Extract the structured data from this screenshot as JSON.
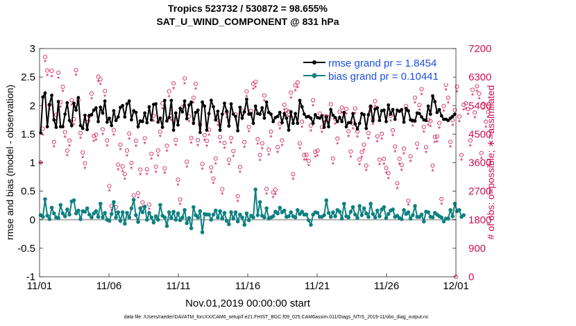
{
  "chart_data": {
    "type": "line",
    "title": "Tropics 523732 / 530872 = 98.655%",
    "subtitle": "SAT_U_WIND_COMPONENT @ 831 hPa",
    "xlabel": "Nov.01,2019 00:00:00 start",
    "ylabel_left": "rmse and bias (model - observation)",
    "ylabel_right": "# of obs: o=possible; ∗=assimilated",
    "footnote": "data file: /Users/raeder/DAI/ATM_forcXX/CAM6_setup/f.e21.FHIST_BGC.f09_025.CAM6assim.011/Diags_NTrS_2019-11/obs_diag_output.nc",
    "x_ticks": [
      1,
      6,
      11,
      16,
      21,
      26,
      31
    ],
    "x_tick_labels": [
      "11/01",
      "11/06",
      "11/11",
      "11/16",
      "11/21",
      "11/26",
      "12/01"
    ],
    "xlim": [
      1,
      31
    ],
    "ylim_left": [
      -1,
      3
    ],
    "y_ticks_left": [
      -1,
      -0.5,
      0,
      0.5,
      1,
      1.5,
      2,
      2.5,
      3
    ],
    "y_tick_labels_left": [
      "-1",
      "-0.5",
      "0",
      "0.5",
      "1",
      "1.5",
      "2",
      "2.5",
      "3"
    ],
    "ylim_right": [
      0,
      7200
    ],
    "y_ticks_right": [
      0,
      900,
      1800,
      2700,
      3600,
      4500,
      5400,
      6300,
      7200
    ],
    "y_tick_labels_right": [
      "0",
      "900",
      "1800",
      "2700",
      "3600",
      "4500",
      "5400",
      "6300",
      "7200"
    ],
    "legend": {
      "location": "top-right",
      "entries": [
        "rmse grand pr = 1.8454",
        "bias grand pr = 0.10441"
      ]
    },
    "colors": {
      "rmse": "#000000",
      "bias": "#0e8080",
      "obs": "#cc1050",
      "zero": "#b0b0b0",
      "legend_text": "#1a4fe0"
    },
    "series": [
      {
        "name": "rmse",
        "axis": "left",
        "values": [
          1.52,
          2.15,
          2.22,
          1.63,
          2.02,
          2.18,
          1.75,
          1.62,
          2.07,
          1.63,
          1.63,
          1.85,
          2.05,
          1.74,
          1.65,
          2.04,
          1.92,
          2.14,
          1.65,
          1.6,
          1.83,
          1.58,
          1.83,
          1.84,
          1.92,
          1.96,
          1.72,
          1.97,
          1.87,
          2.08,
          1.71,
          1.78,
          1.65,
          1.91,
          1.74,
          1.8,
          1.97,
          2.0,
          1.8,
          2.03,
          2.08,
          1.75,
          1.91,
          1.88,
          1.63,
          1.73,
          1.72,
          1.87,
          1.7,
          1.98,
          1.75,
          2.02,
          2.03,
          1.71,
          1.78,
          1.62,
          2.09,
          1.73,
          1.79,
          2.09,
          1.57,
          1.87,
          1.66,
          1.95,
          1.89,
          2.08,
          1.77,
          2.01,
          2.06,
          1.69,
          1.88,
          1.92,
          1.53,
          2.06,
          1.99,
          1.57,
          1.86,
          2.09,
          1.98,
          1.75,
          1.9,
          1.57,
          1.85,
          2.04,
          1.9,
          1.64,
          2.03,
          1.85,
          1.81,
          1.56,
          1.97,
          1.78,
          1.89,
          2.11,
          1.85,
          1.86,
          1.69,
          1.99,
          1.86,
          1.85,
          1.96,
          1.78,
          2.06,
          1.88,
          1.85,
          1.72,
          1.79,
          1.81,
          1.88,
          1.7,
          1.86,
          1.78,
          1.57,
          1.89,
          1.69,
          1.86,
          1.69,
          2.09,
          1.98,
          1.85,
          1.8,
          1.81,
          1.78,
          1.69,
          1.84,
          1.79,
          1.78,
          1.82,
          1.62,
          1.8,
          1.63,
          1.93,
          1.83,
          1.79,
          1.72,
          1.79,
          1.72,
          1.88,
          1.63,
          1.7,
          1.7,
          1.86,
          1.68,
          1.59,
          1.69,
          1.86,
          1.84,
          1.6,
          1.84,
          1.99,
          1.73,
          1.94,
          1.96,
          1.74,
          1.91,
          1.92,
          1.72,
          2.01,
          1.85,
          1.93,
          1.76,
          1.92,
          1.9,
          1.93,
          1.71,
          1.95,
          1.91,
          1.75,
          1.74,
          1.73,
          1.87,
          1.86,
          1.8,
          1.75,
          1.74,
          1.99,
          1.85,
          2.17,
          2.07,
          1.88,
          1.93,
          1.82,
          1.76,
          1.76,
          1.74,
          1.78,
          1.81,
          1.85
        ]
      },
      {
        "name": "bias",
        "axis": "left",
        "values": [
          0.08,
          0.05,
          0.36,
          0.07,
          0.01,
          0.21,
          0.11,
          0.04,
          0.03,
          0.26,
          0.11,
          0.06,
          0.18,
          0.09,
          0.32,
          0.34,
          0.11,
          0.16,
          0.01,
          0.15,
          0.14,
          0.2,
          0.09,
          0.04,
          0.11,
          0.15,
          0.05,
          0.28,
          0.04,
          0.12,
          0.0,
          -0.02,
          0.1,
          0.31,
          0.04,
          0.13,
          -0.02,
          0.13,
          -0.07,
          0.12,
          0.04,
          0.2,
          0.35,
          0.08,
          -0.04,
          0.2,
          0.13,
          0.23,
          0.0,
          0.12,
          0.04,
          -0.05,
          0.06,
          0.0,
          0.26,
          0.07,
          0.04,
          -0.11,
          0.13,
          0.03,
          0.14,
          0.0,
          0.11,
          -0.01,
          0.04,
          0.17,
          -0.06,
          0.03,
          -0.15,
          0.22,
          0.08,
          0.04,
          0.15,
          -0.22,
          0.1,
          0.09,
          0.09,
          0.0,
          0.09,
          0.16,
          0.04,
          0.15,
          0.02,
          0.12,
          -0.02,
          -0.08,
          0.13,
          0.02,
          0.13,
          -0.03,
          0.09,
          0.04,
          -0.09,
          0.11,
          -0.01,
          0.07,
          0.04,
          0.53,
          0.08,
          0.31,
          0.07,
          0.04,
          0.2,
          0.02,
          0.04,
          0.06,
          0.14,
          0.11,
          0.21,
          0.13,
          0.16,
          0.05,
          0.06,
          0.13,
          0.06,
          0.04,
          0.17,
          0.1,
          0.14,
          0.09,
          0.09,
          -0.01,
          -0.09,
          0.09,
          0.13,
          0.12,
          0.05,
          0.05,
          0.08,
          0.34,
          0.12,
          0.05,
          0.13,
          0.06,
          0.17,
          0.14,
          0.02,
          0.28,
          0.06,
          0.04,
          0.14,
          0.22,
          0.09,
          0.03,
          0.24,
          0.08,
          0.2,
          0.11,
          0.05,
          0.28,
          0.1,
          0.04,
          0.16,
          0.06,
          0.18,
          0.22,
          0.03,
          0.1,
          0.16,
          0.18,
          0.05,
          0.07,
          0.03,
          0.01,
          0.17,
          0.1,
          0.13,
          0.02,
          0.08,
          0.24,
          0.05,
          0.05,
          0.09,
          -0.03,
          0.14,
          0.13,
          0.05,
          0.04,
          0.12,
          0.09,
          0.06,
          0.04,
          -0.03,
          0.02,
          0.02,
          0.17,
          0.06,
          0.28,
          0.15,
          0.17,
          0.05,
          0.08
        ]
      }
    ],
    "obs_counts": {
      "axis": "right",
      "possible": [
        3605,
        4670,
        6940,
        6510,
        5420,
        6500,
        4250,
        5110,
        6440,
        5510,
        5990,
        4560,
        3980,
        4300,
        5570,
        4970,
        6520,
        5570,
        4530,
        3920,
        3580,
        4880,
        5070,
        5780,
        4440,
        4480,
        6310,
        6230,
        4650,
        5860,
        4300,
        2860,
        2230,
        4630,
        2190,
        3540,
        4170,
        3480,
        3240,
        3980,
        4520,
        3590,
        2570,
        4290,
        2640,
        3380,
        2350,
        4370,
        3390,
        2280,
        3880,
        5080,
        3470,
        3980,
        4580,
        5470,
        3420,
        4130,
        5850,
        5090,
        6100,
        4320,
        3060,
        2440,
        5360,
        6260,
        3630,
        5060,
        4380,
        5650,
        6090,
        4310,
        4800,
        3560,
        4470,
        4290,
        4640,
        3450,
        3100,
        3730,
        4940,
        4410,
        2760,
        4220,
        5180,
        3690,
        4380,
        3970,
        5120,
        2540,
        3460,
        5240,
        4250,
        5850,
        4730,
        5230,
        6090,
        6150,
        4340,
        3840,
        4210,
        5720,
        2770,
        4010,
        4580,
        2660,
        2750,
        4090,
        4830,
        4300,
        5430,
        5250,
        5210,
        5810,
        3240,
        6040,
        6130,
        4210,
        4890,
        3840,
        3850,
        3660,
        4770,
        5570,
        3940,
        3980,
        5150,
        4720,
        5060,
        5060,
        5040,
        5440,
        3730,
        4990,
        4360,
        5200,
        5340,
        6380,
        5300,
        4590,
        3950,
        4830,
        5310,
        4580,
        3700,
        3930,
        4170,
        3510,
        4530,
        5360,
        4980,
        5540,
        4430,
        3690,
        4510,
        3720,
        3430,
        3270,
        5080,
        4620,
        4110,
        2950,
        3720,
        3530,
        4040,
        5390,
        2400,
        3800,
        4920,
        5650,
        4200,
        5420,
        5920,
        4730,
        4090,
        4950,
        4910,
        3510,
        4410,
        4430,
        4850,
        2450,
        5390,
        6060,
        5650,
        4260,
        4940,
        5260,
        6000,
        5060,
        3840,
        5430,
        5470,
        5290,
        4300,
        5900,
        5180,
        6010,
        5780,
        3900,
        5460,
        4890,
        5200
      ],
      "assimilated": [
        3590,
        4480,
        6790,
        6360,
        5270,
        6330,
        4100,
        4940,
        6270,
        5360,
        5850,
        4410,
        3830,
        4140,
        5430,
        4800,
        6370,
        5420,
        4380,
        3760,
        3430,
        4710,
        4900,
        5620,
        4280,
        4320,
        6160,
        6070,
        4500,
        5700,
        4140,
        2710,
        2090,
        4470,
        2040,
        3380,
        4020,
        3330,
        3090,
        3820,
        4360,
        3430,
        2430,
        4130,
        2490,
        3230,
        2200,
        4210,
        3240,
        2130,
        3720,
        4910,
        3310,
        3820,
        4430,
        5310,
        3270,
        3970,
        5690,
        4930,
        5940,
        4160,
        2900,
        2290,
        5200,
        6100,
        3470,
        4900,
        4220,
        5490,
        5930,
        4150,
        4640,
        3400,
        4310,
        4130,
        4480,
        3290,
        2950,
        3570,
        4780,
        4250,
        2610,
        4060,
        5020,
        3540,
        4220,
        3810,
        4960,
        2390,
        3300,
        5080,
        4090,
        5690,
        4580,
        5070,
        5930,
        5990,
        4190,
        3680,
        4050,
        5560,
        2620,
        3850,
        4420,
        2510,
        2600,
        3930,
        4670,
        4150,
        5270,
        5090,
        5050,
        5650,
        3090,
        5880,
        5970,
        4050,
        4730,
        3690,
        3700,
        3510,
        4610,
        5410,
        3790,
        3820,
        4990,
        4560,
        4900,
        4900,
        4880,
        5280,
        3570,
        4830,
        4200,
        5040,
        5180,
        6220,
        5140,
        4430,
        3790,
        4670,
        5150,
        4420,
        3540,
        3770,
        4010,
        3360,
        4370,
        5200,
        4820,
        5380,
        4270,
        3540,
        4350,
        3560,
        3280,
        3110,
        4920,
        4460,
        3950,
        2790,
        3560,
        3370,
        3880,
        5230,
        2260,
        3640,
        4760,
        5490,
        4040,
        5260,
        5760,
        4570,
        3930,
        4790,
        4750,
        3350,
        4250,
        4270,
        4690,
        2300,
        5230,
        5900,
        5490,
        4100,
        4780,
        5100,
        5840,
        4900,
        3690,
        5270,
        5310,
        5130,
        4140,
        5740,
        5020,
        5850,
        5620,
        3740,
        5300,
        4730,
        5040
      ]
    }
  }
}
